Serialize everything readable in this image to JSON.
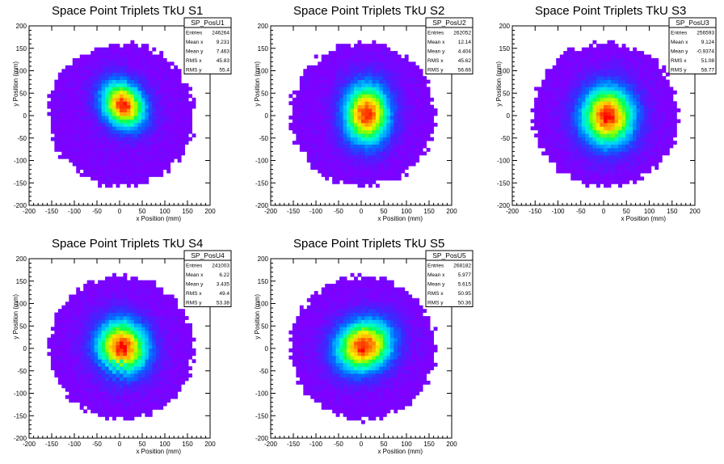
{
  "chart_data": [
    {
      "type": "heatmap",
      "title": "Space Point Triplets TkU S1",
      "xlabel": "x Position (mm)",
      "ylabel": "y Position (mm)",
      "xlim": [
        -200,
        200
      ],
      "ylim": [
        -200,
        200
      ],
      "xticks": [
        -200,
        -150,
        -100,
        -50,
        0,
        50,
        100,
        150,
        200
      ],
      "yticks": [
        -200,
        -150,
        -100,
        -50,
        0,
        50,
        100,
        150,
        200
      ],
      "bin_width_mm": 8,
      "footprint_radius_mm": 160,
      "peak": {
        "x": 8,
        "y": 24,
        "sx": 32,
        "sy": 40,
        "rot": -0.6
      },
      "stats": {
        "name": "SP_PosU1",
        "rows": [
          {
            "label": "Entries",
            "value": "246264"
          },
          {
            "label": "Mean x",
            "value": "9.231"
          },
          {
            "label": "Mean y",
            "value": "7.463"
          },
          {
            "label": "RMS x",
            "value": "45.83"
          },
          {
            "label": "RMS y",
            "value": "55.4"
          }
        ]
      }
    },
    {
      "type": "heatmap",
      "title": "Space Point Triplets TkU S2",
      "xlabel": "x Position (mm)",
      "ylabel": "y Position (mm)",
      "xlim": [
        -200,
        200
      ],
      "ylim": [
        -200,
        200
      ],
      "xticks": [
        -200,
        -150,
        -100,
        -50,
        0,
        50,
        100,
        150,
        200
      ],
      "yticks": [
        -200,
        -150,
        -100,
        -50,
        0,
        50,
        100,
        150,
        200
      ],
      "bin_width_mm": 8,
      "footprint_radius_mm": 160,
      "peak": {
        "x": 12,
        "y": 4,
        "sx": 36,
        "sy": 48,
        "rot": 0.0
      },
      "stats": {
        "name": "SP_PosU2",
        "rows": [
          {
            "label": "Entries",
            "value": "262052"
          },
          {
            "label": "Mean x",
            "value": "12.14"
          },
          {
            "label": "Mean y",
            "value": "4.404"
          },
          {
            "label": "RMS x",
            "value": "45.62"
          },
          {
            "label": "RMS y",
            "value": "56.66"
          }
        ]
      }
    },
    {
      "type": "heatmap",
      "title": "Space Point Triplets TkU S3",
      "xlabel": "x Position (mm)",
      "ylabel": "y Position (mm)",
      "xlim": [
        -200,
        200
      ],
      "ylim": [
        -200,
        200
      ],
      "xticks": [
        -200,
        -150,
        -100,
        -50,
        0,
        50,
        100,
        150,
        200
      ],
      "yticks": [
        -200,
        -150,
        -100,
        -50,
        0,
        50,
        100,
        150,
        200
      ],
      "bin_width_mm": 8,
      "footprint_radius_mm": 160,
      "peak": {
        "x": 9,
        "y": -1,
        "sx": 42,
        "sy": 48,
        "rot": 0.0
      },
      "stats": {
        "name": "SP_PosU3",
        "rows": [
          {
            "label": "Entries",
            "value": "256593"
          },
          {
            "label": "Mean x",
            "value": "9.124"
          },
          {
            "label": "Mean y",
            "value": "-0.9374"
          },
          {
            "label": "RMS x",
            "value": "51.08"
          },
          {
            "label": "RMS y",
            "value": "58.77"
          }
        ]
      }
    },
    {
      "type": "heatmap",
      "title": "Space Point Triplets TkU S4",
      "xlabel": "x Position (mm)",
      "ylabel": "y Position (mm)",
      "xlim": [
        -200,
        200
      ],
      "ylim": [
        -200,
        200
      ],
      "xticks": [
        -200,
        -150,
        -100,
        -50,
        0,
        50,
        100,
        150,
        200
      ],
      "yticks": [
        -200,
        -150,
        -100,
        -50,
        0,
        50,
        100,
        150,
        200
      ],
      "bin_width_mm": 8,
      "footprint_radius_mm": 160,
      "peak": {
        "x": 6,
        "y": 3,
        "sx": 40,
        "sy": 44,
        "rot": -0.3
      },
      "stats": {
        "name": "SP_PosU4",
        "rows": [
          {
            "label": "Entries",
            "value": "241003"
          },
          {
            "label": "Mean x",
            "value": "6.22"
          },
          {
            "label": "Mean y",
            "value": "3.435"
          },
          {
            "label": "RMS x",
            "value": "49.4"
          },
          {
            "label": "RMS y",
            "value": "53.38"
          }
        ]
      }
    },
    {
      "type": "heatmap",
      "title": "Space Point Triplets TkU S5",
      "xlabel": "x Position (mm)",
      "ylabel": "y Position (mm)",
      "xlim": [
        -200,
        200
      ],
      "ylim": [
        -200,
        200
      ],
      "xticks": [
        -200,
        -150,
        -100,
        -50,
        0,
        50,
        100,
        150,
        200
      ],
      "yticks": [
        -200,
        -150,
        -100,
        -50,
        0,
        50,
        100,
        150,
        200
      ],
      "bin_width_mm": 8,
      "footprint_radius_mm": 160,
      "peak": {
        "x": 6,
        "y": 6,
        "sx": 46,
        "sy": 40,
        "rot": -0.5
      },
      "stats": {
        "name": "SP_PosU5",
        "rows": [
          {
            "label": "Entries",
            "value": "268182"
          },
          {
            "label": "Mean x",
            "value": "5.977"
          },
          {
            "label": "Mean y",
            "value": "5.615"
          },
          {
            "label": "RMS x",
            "value": "50.95"
          },
          {
            "label": "RMS y",
            "value": "50.36"
          }
        ]
      }
    }
  ]
}
